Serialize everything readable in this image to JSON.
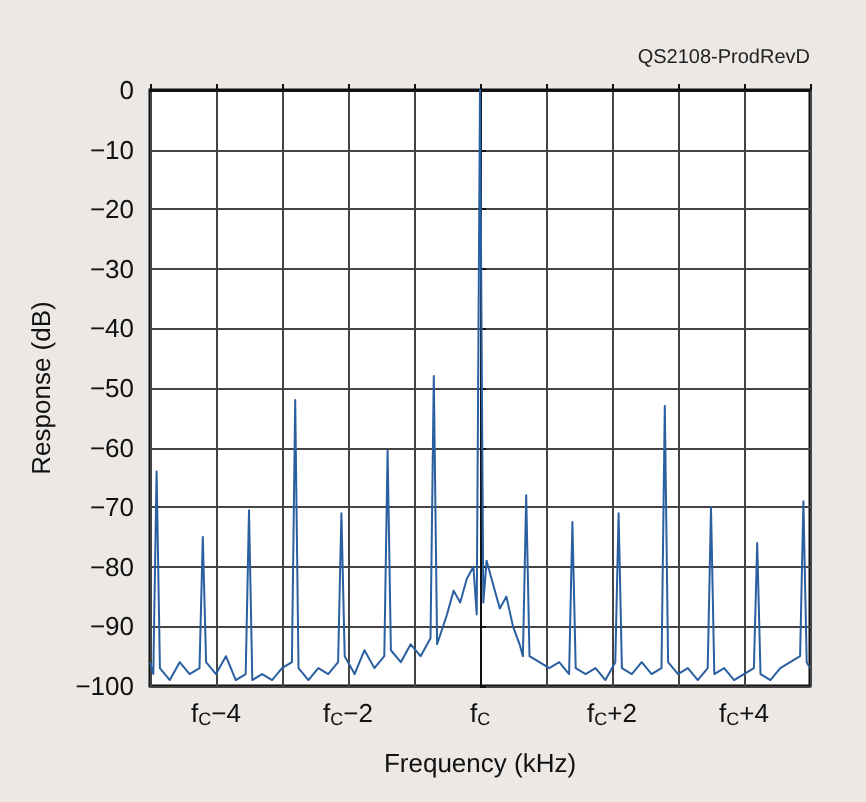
{
  "chart_data": {
    "type": "line",
    "xlabel": "Frequency (kHz)",
    "ylabel": "Response (dB)",
    "annotations": [
      "QS2108-ProdRevD"
    ],
    "xlim": [
      -5,
      5
    ],
    "xticks": [
      {
        "value": -5,
        "label": null
      },
      {
        "value": -4,
        "label": "f$_{C}$−4"
      },
      {
        "value": -3,
        "label": null
      },
      {
        "value": -2,
        "label": "f$_{C}$−2"
      },
      {
        "value": -1,
        "label": null
      },
      {
        "value": 0,
        "label": "f$_{C}$"
      },
      {
        "value": 1,
        "label": null
      },
      {
        "value": 2,
        "label": "f$_{C}$+2"
      },
      {
        "value": 3,
        "label": null
      },
      {
        "value": 4,
        "label": "f$_{C}$+4"
      },
      {
        "value": 5,
        "label": null
      }
    ],
    "ylim": [
      -100,
      0
    ],
    "yticks": [
      -100,
      -90,
      -80,
      -70,
      -60,
      -50,
      -40,
      -30,
      -20,
      -10,
      0
    ],
    "grid": true,
    "marker": "none",
    "line_style": "solid",
    "x": [
      -5.0,
      -4.95,
      -4.9,
      -4.85,
      -4.7,
      -4.55,
      -4.4,
      -4.25,
      -4.2,
      -4.15,
      -4.0,
      -3.85,
      -3.7,
      -3.55,
      -3.5,
      -3.45,
      -3.3,
      -3.15,
      -3.0,
      -2.85,
      -2.8,
      -2.75,
      -2.6,
      -2.45,
      -2.3,
      -2.15,
      -2.1,
      -2.05,
      -1.9,
      -1.75,
      -1.6,
      -1.45,
      -1.4,
      -1.35,
      -1.2,
      -1.05,
      -0.9,
      -0.75,
      -0.7,
      -0.65,
      -0.5,
      -0.4,
      -0.3,
      -0.2,
      -0.1,
      -0.05,
      0,
      0.05,
      0.1,
      0.2,
      0.3,
      0.4,
      0.5,
      0.6,
      0.65,
      0.7,
      0.75,
      0.9,
      1.05,
      1.2,
      1.35,
      1.4,
      1.45,
      1.6,
      1.75,
      1.9,
      2.05,
      2.1,
      2.15,
      2.3,
      2.45,
      2.6,
      2.75,
      2.8,
      2.85,
      3.0,
      3.15,
      3.3,
      3.45,
      3.5,
      3.55,
      3.7,
      3.85,
      4.0,
      4.15,
      4.2,
      4.25,
      4.4,
      4.55,
      4.7,
      4.85,
      4.9,
      4.95,
      5.0
    ],
    "series": [
      {
        "color": "#2a5fa0",
        "values": [
          -96,
          -98,
          -64,
          -97,
          -99,
          -96,
          -98,
          -97,
          -75,
          -96,
          -98,
          -95,
          -99,
          -98,
          -70.5,
          -99,
          -98,
          -99,
          -97,
          -96,
          -52,
          -97,
          -99,
          -97,
          -98,
          -96,
          -71,
          -95,
          -98,
          -94,
          -97,
          -95,
          -60.5,
          -94,
          -96,
          -93,
          -95,
          -92,
          -48,
          -93,
          -88,
          -84,
          -86,
          -82,
          -80,
          -88,
          0,
          -86,
          -79,
          -83,
          -87,
          -85,
          -90,
          -93,
          -95,
          -68,
          -95,
          -96,
          -97,
          -96,
          -98,
          -72.5,
          -97,
          -98,
          -97,
          -99,
          -96,
          -71,
          -97,
          -98,
          -96,
          -98,
          -97,
          -53,
          -96,
          -98,
          -97,
          -99,
          -97,
          -70,
          -98,
          -97,
          -99,
          -98,
          -97,
          -76,
          -98,
          -99,
          -97,
          -96,
          -95,
          -69,
          -96,
          -97
        ]
      }
    ]
  }
}
